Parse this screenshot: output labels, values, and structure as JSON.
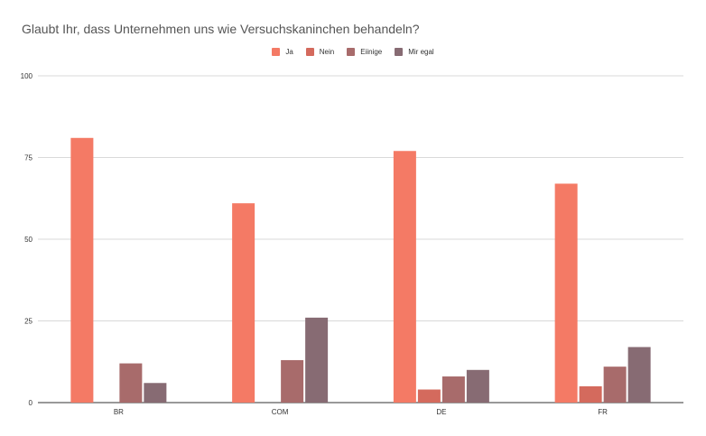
{
  "chart_data": {
    "type": "bar",
    "title": "Glaubt Ihr, dass Unternehmen uns wie Versuchskaninchen behandeln?",
    "categories": [
      "BR",
      "COM",
      "DE",
      "FR"
    ],
    "series": [
      {
        "name": "Ja",
        "color": "#f47a65",
        "values": [
          81,
          61,
          77,
          67
        ]
      },
      {
        "name": "Nein",
        "color": "#d46a5d",
        "values": [
          0,
          0,
          4,
          5
        ]
      },
      {
        "name": "Eiinige",
        "color": "#a86b6b",
        "values": [
          12,
          13,
          8,
          11
        ]
      },
      {
        "name": "Mir egal",
        "color": "#876b73",
        "values": [
          6,
          26,
          10,
          17
        ]
      }
    ],
    "yticks": [
      "0",
      "25",
      "50",
      "75",
      "100"
    ],
    "ylim": [
      0,
      100
    ],
    "grid": true,
    "legend_position": "top"
  }
}
